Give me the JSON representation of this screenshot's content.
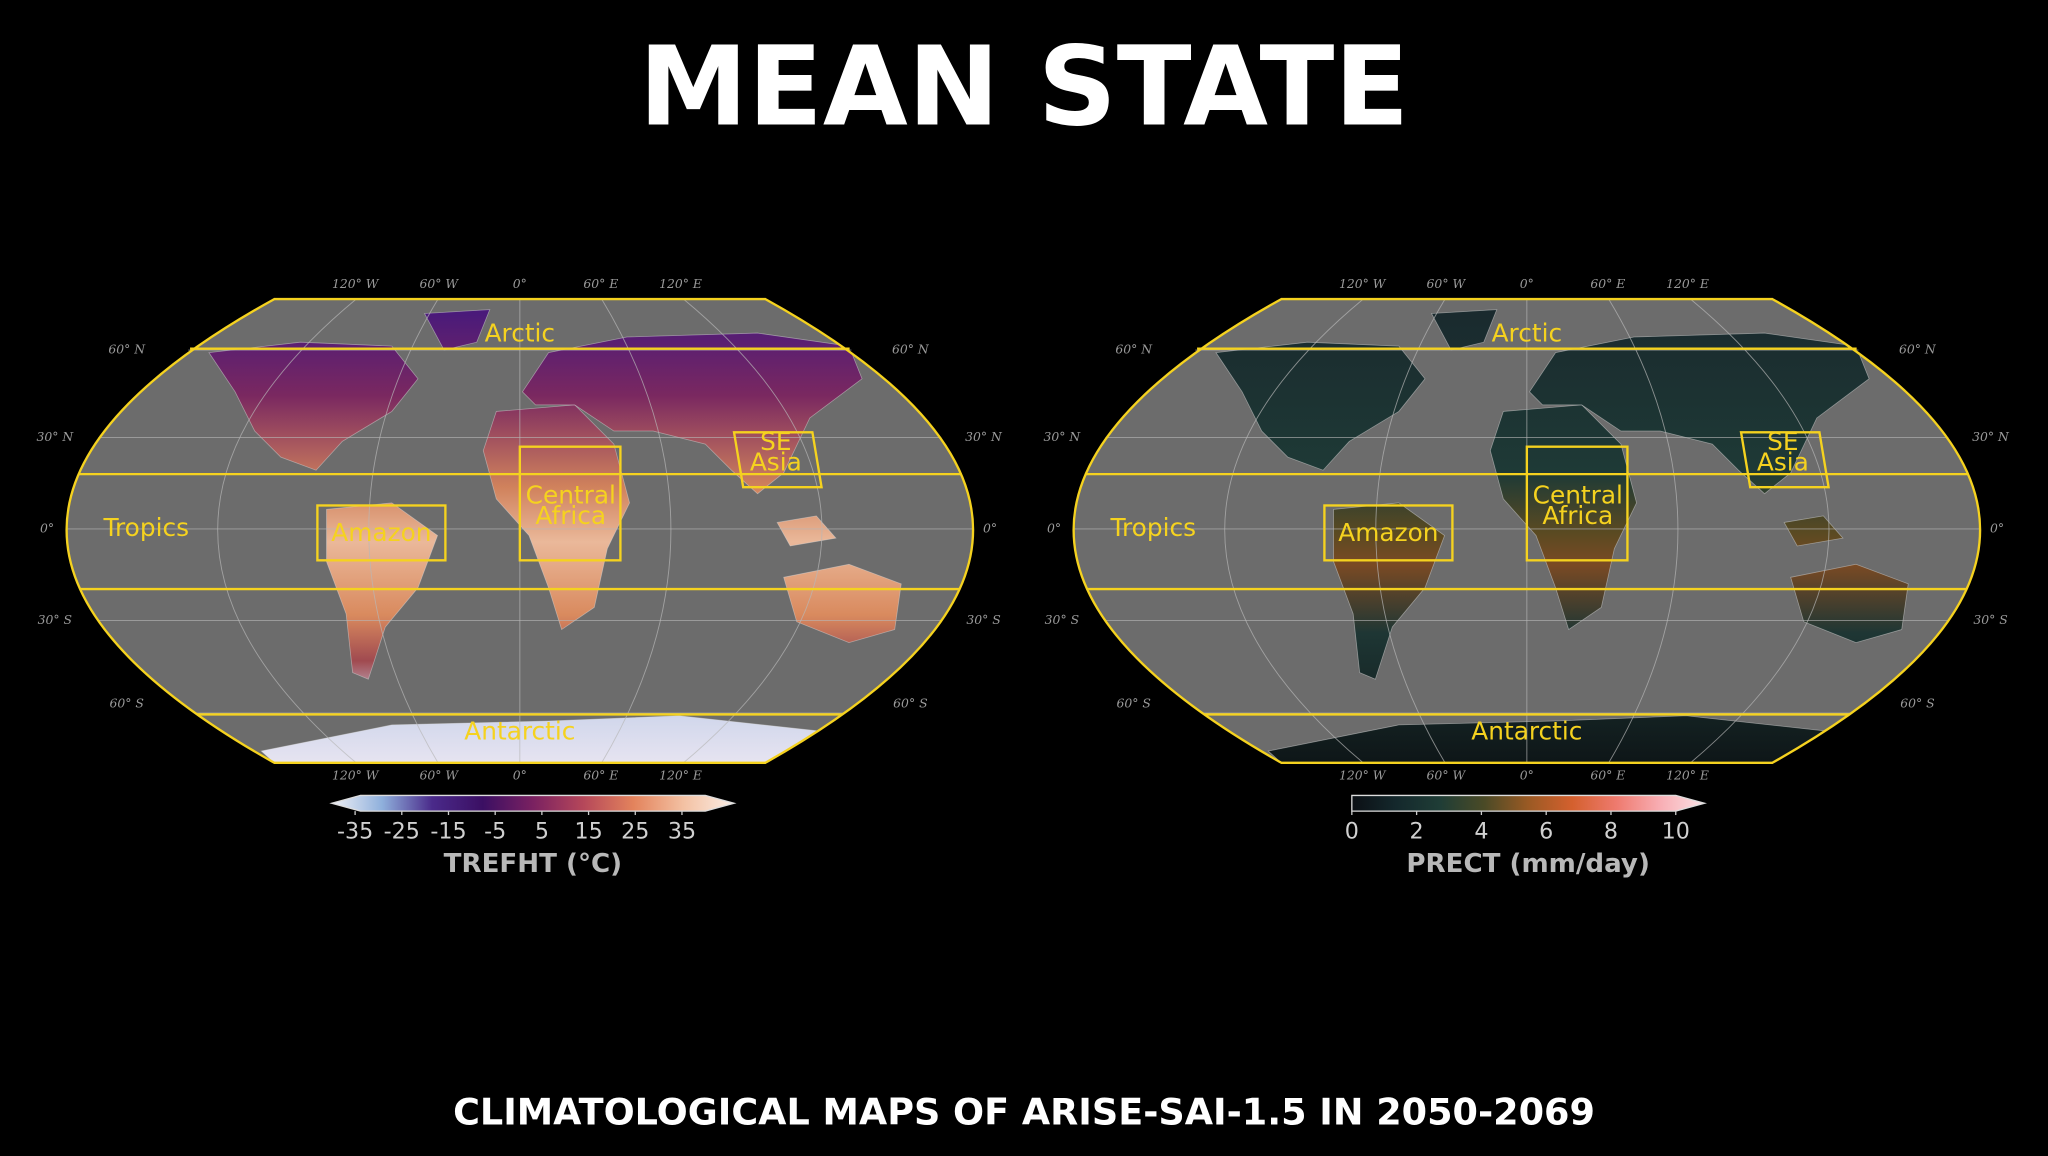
{
  "title": "MEAN STATE",
  "subtitle": "CLIMATOLOGICAL MAPS OF ARISE-SAI-1.5 IN 2050-2069",
  "maps": [
    {
      "regions": [
        [
          "Arctic"
        ],
        [
          "Tropics"
        ],
        [
          "Amazon"
        ],
        [
          "Central",
          "Africa"
        ],
        [
          "SE",
          "Asia"
        ],
        [
          "Antarctic"
        ]
      ],
      "lon_labels": [
        "120° W",
        "60° W",
        "0°",
        "60° E",
        "120° E"
      ],
      "lat_labels": [
        "60° N",
        "30° N",
        "0°",
        "30° S",
        "60° S"
      ],
      "colorbar": {
        "label": "TREFHT (°C)",
        "lim": [
          -40,
          40
        ],
        "ticks": [
          -35,
          -25,
          -15,
          -5,
          5,
          15,
          25,
          35
        ],
        "extend": "both",
        "colors": [
          "#f2f2f6",
          "#8fb0dc",
          "#4a2a8a",
          "#3b0f63",
          "#7a2161",
          "#b5475a",
          "#e3835c",
          "#f3c1a3",
          "#fbeee6"
        ]
      }
    },
    {
      "regions": [
        [
          "Arctic"
        ],
        [
          "Tropics"
        ],
        [
          "Amazon"
        ],
        [
          "Central",
          "Africa"
        ],
        [
          "SE",
          "Asia"
        ],
        [
          "Antarctic"
        ]
      ],
      "lon_labels": [
        "120° W",
        "60° W",
        "0°",
        "60° E",
        "120° E"
      ],
      "lat_labels": [
        "60° N",
        "30° N",
        "0°",
        "30° S",
        "60° S"
      ],
      "colorbar": {
        "label": "PRECT (mm/day)",
        "lim": [
          0,
          10
        ],
        "ticks": [
          0,
          2,
          4,
          6,
          8,
          10
        ],
        "extend": "max",
        "colors": [
          "#0b0f14",
          "#14282c",
          "#1f3d36",
          "#4a4a26",
          "#9a5a24",
          "#d4602e",
          "#ee7a6e",
          "#f8aeb4",
          "#fbe2e6"
        ]
      }
    }
  ]
}
